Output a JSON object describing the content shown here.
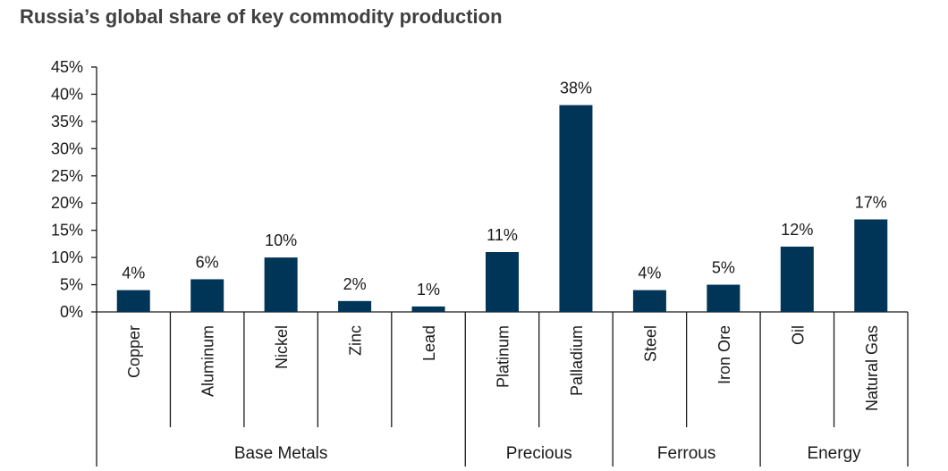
{
  "title": "Russia’s global share of key commodity production",
  "colors": {
    "bar": "#003558",
    "axis": "#1a1a1a"
  },
  "chart_data": {
    "type": "bar",
    "title": "Russia’s global share of key commodity production",
    "categories": [
      "Copper",
      "Aluminum",
      "Nickel",
      "Zinc",
      "Lead",
      "Platinum",
      "Palladium",
      "Steel",
      "Iron Ore",
      "Oil",
      "Natural Gas"
    ],
    "values": [
      4,
      6,
      10,
      2,
      1,
      11,
      38,
      4,
      5,
      12,
      17
    ],
    "data_labels": [
      "4%",
      "6%",
      "10%",
      "2%",
      "1%",
      "11%",
      "38%",
      "4%",
      "5%",
      "12%",
      "17%"
    ],
    "groups": [
      {
        "name": "Base Metals",
        "categories": [
          "Copper",
          "Aluminum",
          "Nickel",
          "Zinc",
          "Lead"
        ]
      },
      {
        "name": "Precious",
        "categories": [
          "Platinum",
          "Palladium"
        ]
      },
      {
        "name": "Ferrous",
        "categories": [
          "Steel",
          "Iron Ore"
        ]
      },
      {
        "name": "Energy",
        "categories": [
          "Oil",
          "Natural Gas"
        ]
      }
    ],
    "y_ticks": [
      "0%",
      "5%",
      "10%",
      "15%",
      "20%",
      "25%",
      "30%",
      "35%",
      "40%",
      "45%"
    ],
    "ylim": [
      0,
      45
    ],
    "xlabel": "",
    "ylabel": "",
    "grid": false,
    "legend": "none"
  }
}
